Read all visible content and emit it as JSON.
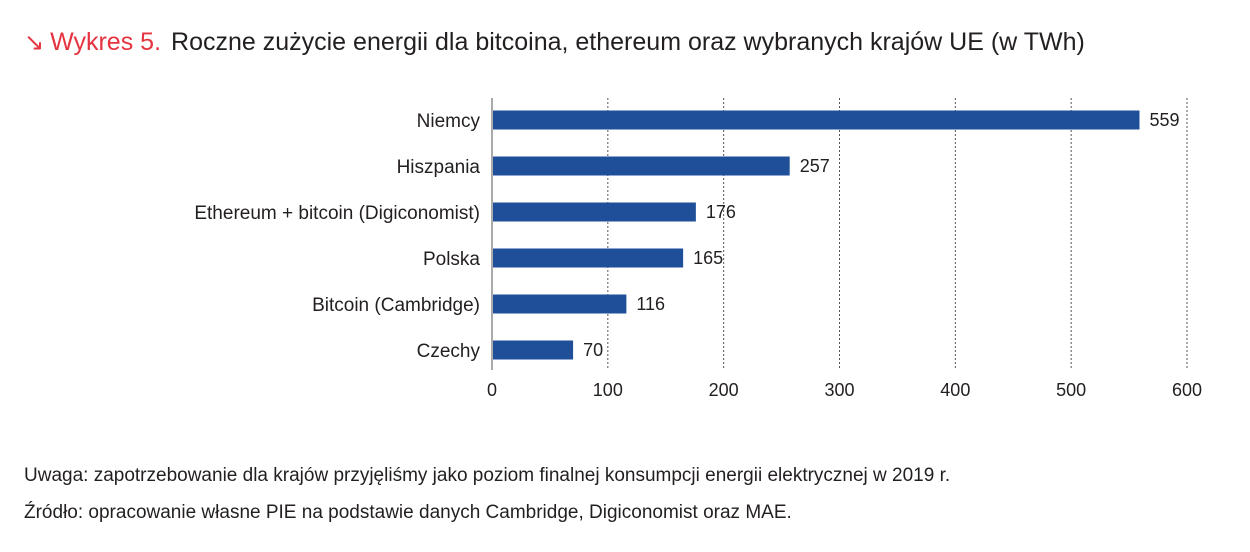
{
  "header": {
    "arrow_glyph": "↘",
    "prefix": "Wykres 5.",
    "title": "Roczne zużycie energii dla bitcoina, ethereum oraz wybranych krajów UE (w TWh)"
  },
  "chart_data": {
    "type": "bar",
    "orientation": "horizontal",
    "categories": [
      "Niemcy",
      "Hiszpania",
      "Ethereum + bitcoin (Digiconomist)",
      "Polska",
      "Bitcoin (Cambridge)",
      "Czechy"
    ],
    "values": [
      559,
      257,
      176,
      165,
      116,
      70
    ],
    "xlim": [
      0,
      600
    ],
    "xticks": [
      0,
      100,
      200,
      300,
      400,
      500,
      600
    ],
    "grid": "vertical-dotted",
    "bar_color": "#1f4f99",
    "title": "",
    "xlabel": "",
    "ylabel": ""
  },
  "notes": {
    "note": "Uwaga: zapotrzebowanie dla krajów przyjęliśmy jako poziom finalnej konsumpcji energii elektrycznej w 2019 r.",
    "source": "Źródło: opracowanie własne PIE na podstawie danych Cambridge, Digiconomist oraz MAE."
  },
  "colors": {
    "accent": "#e5333f",
    "text": "#231f20",
    "bar": "#1f4f99",
    "grid": "#555555"
  }
}
